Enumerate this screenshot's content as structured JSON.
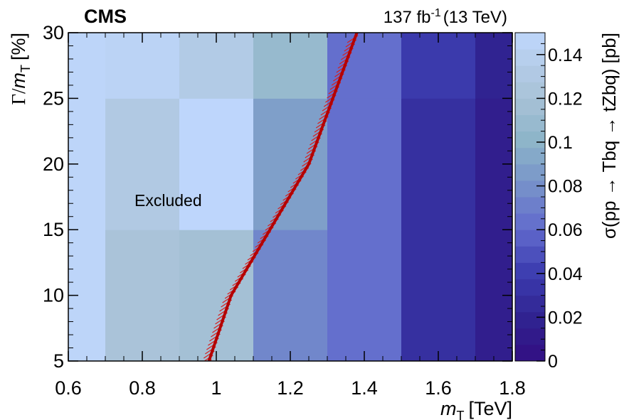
{
  "header": {
    "experiment": "CMS",
    "lumi_value": "137 fb",
    "lumi_exp": "-1",
    "energy": "(13 TeV)"
  },
  "chart_data": {
    "type": "heatmap",
    "x_label": "m",
    "x_label_sub": "T",
    "x_label_unit": "[TeV]",
    "y_label_prefix": "Γ/",
    "y_label_var": "m",
    "y_label_sub": "T",
    "y_label_unit": "[%]",
    "z_label": "σ(pp → Tbq → tZbq) [pb]",
    "xlim": [
      0.6,
      1.8
    ],
    "ylim": [
      5,
      30
    ],
    "zlim": [
      0,
      0.15
    ],
    "x_ticks": [
      "0.6",
      "0.8",
      "1",
      "1.2",
      "1.4",
      "1.6",
      "1.8"
    ],
    "y_ticks": [
      "5",
      "10",
      "15",
      "20",
      "25",
      "30"
    ],
    "z_ticks": [
      "0",
      "0.02",
      "0.04",
      "0.06",
      "0.08",
      "0.1",
      "0.12",
      "0.14"
    ],
    "x_bin_edges": [
      0.6,
      0.7,
      0.9,
      1.1,
      1.3,
      1.5,
      1.7,
      1.8
    ],
    "y_bin_edges": [
      5,
      15,
      25,
      30
    ],
    "values": [
      [
        0.148,
        0.122,
        0.117,
        0.075,
        0.063,
        0.03,
        0.015
      ],
      [
        0.148,
        0.131,
        0.15,
        0.088,
        0.063,
        0.03,
        0.015
      ],
      [
        0.148,
        0.145,
        0.133,
        0.108,
        0.063,
        0.038,
        0.02
      ]
    ],
    "exclusion_contour": {
      "x": [
        0.98,
        1.04,
        1.25,
        1.38
      ],
      "y": [
        5,
        10,
        20,
        30
      ]
    },
    "annotation": "Excluded"
  }
}
